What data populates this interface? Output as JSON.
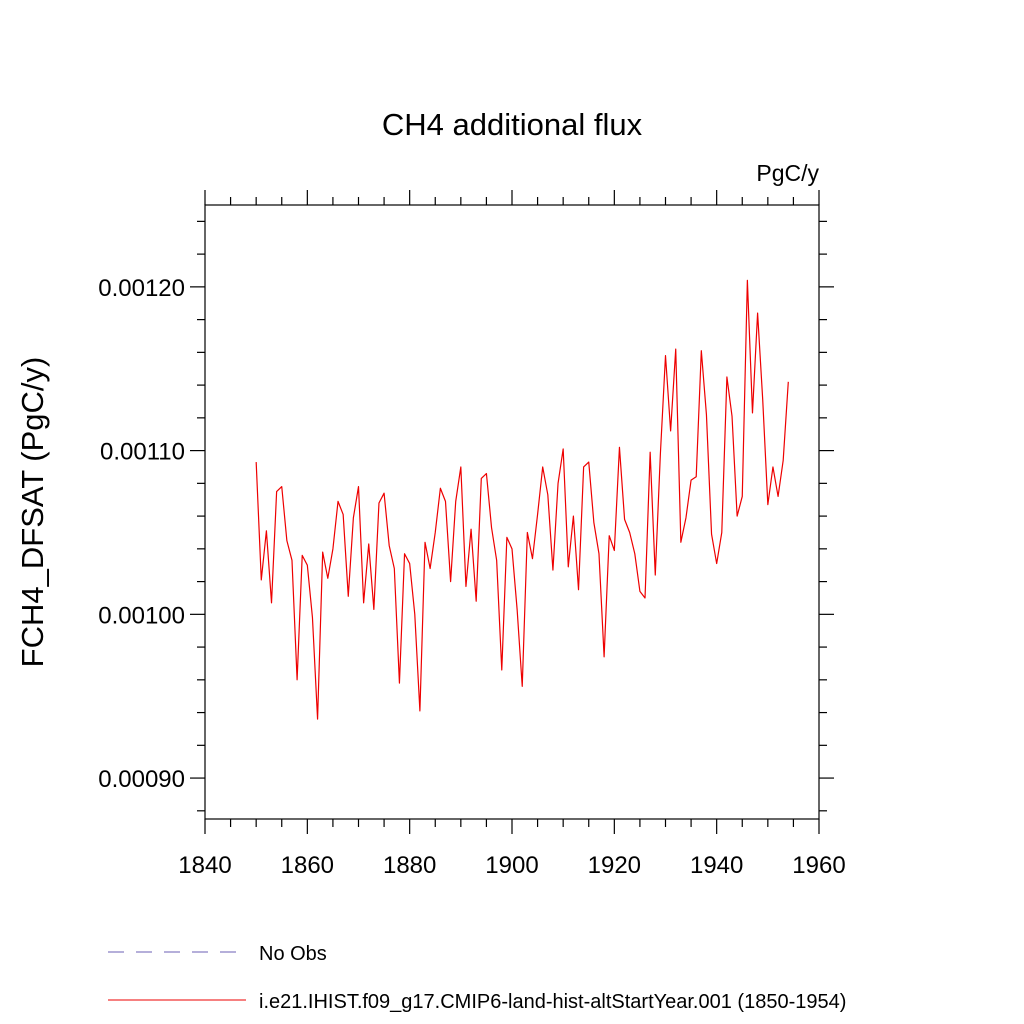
{
  "chart_data": {
    "type": "line",
    "title": "CH4 additional flux",
    "units_label": "PgC/y",
    "ylabel": "FCH4_DFSAT  (PgC/y)",
    "xlabel": "",
    "xlim": [
      1840,
      1960
    ],
    "ylim": [
      0.000875,
      0.00125
    ],
    "x_ticks": [
      1840,
      1860,
      1880,
      1900,
      1920,
      1940,
      1960
    ],
    "x_tick_labels": [
      "1840",
      "1860",
      "1880",
      "1900",
      "1920",
      "1940",
      "1960"
    ],
    "y_ticks": [
      0.0009,
      0.001,
      0.0011,
      0.0012
    ],
    "y_tick_labels": [
      "0.00090",
      "0.00100",
      "0.00110",
      "0.00120"
    ],
    "grid": false,
    "legend_placement": "bottom",
    "legend": [
      {
        "label": "No Obs",
        "color": "#6b5fb5",
        "style": "dashed"
      },
      {
        "label": "i.e21.IHIST.f09_g17.CMIP6-land-hist-altStartYear.001 (1850-1954)",
        "color": "#ee0000",
        "style": "solid"
      }
    ],
    "series": [
      {
        "name": "i.e21.IHIST.f09_g17.CMIP6-land-hist-altStartYear.001 (1850-1954)",
        "color": "#ee0000",
        "x": [
          1850,
          1851,
          1852,
          1853,
          1854,
          1855,
          1856,
          1857,
          1858,
          1859,
          1860,
          1861,
          1862,
          1863,
          1864,
          1865,
          1866,
          1867,
          1868,
          1869,
          1870,
          1871,
          1872,
          1873,
          1874,
          1875,
          1876,
          1877,
          1878,
          1879,
          1880,
          1881,
          1882,
          1883,
          1884,
          1885,
          1886,
          1887,
          1888,
          1889,
          1890,
          1891,
          1892,
          1893,
          1894,
          1895,
          1896,
          1897,
          1898,
          1899,
          1900,
          1901,
          1902,
          1903,
          1904,
          1905,
          1906,
          1907,
          1908,
          1909,
          1910,
          1911,
          1912,
          1913,
          1914,
          1915,
          1916,
          1917,
          1918,
          1919,
          1920,
          1921,
          1922,
          1923,
          1924,
          1925,
          1926,
          1927,
          1928,
          1929,
          1930,
          1931,
          1932,
          1933,
          1934,
          1935,
          1936,
          1937,
          1938,
          1939,
          1940,
          1941,
          1942,
          1943,
          1944,
          1945,
          1946,
          1947,
          1948,
          1949,
          1950,
          1951,
          1952,
          1953,
          1954
        ],
        "values": [
          0.001093,
          0.001021,
          0.001051,
          0.001007,
          0.001075,
          0.001078,
          0.001045,
          0.001033,
          0.00096,
          0.001036,
          0.00103,
          0.000998,
          0.000936,
          0.001038,
          0.001022,
          0.00104,
          0.001069,
          0.001061,
          0.001011,
          0.001059,
          0.001078,
          0.001007,
          0.001043,
          0.001003,
          0.001068,
          0.001074,
          0.001042,
          0.001028,
          0.000958,
          0.001037,
          0.001031,
          0.001,
          0.000941,
          0.001044,
          0.001028,
          0.00105,
          0.001077,
          0.001069,
          0.00102,
          0.001069,
          0.00109,
          0.001017,
          0.001052,
          0.001008,
          0.001083,
          0.001086,
          0.001053,
          0.001033,
          0.000966,
          0.001047,
          0.00104,
          0.001003,
          0.000956,
          0.00105,
          0.001034,
          0.001061,
          0.00109,
          0.001073,
          0.001027,
          0.00108,
          0.001101,
          0.001029,
          0.00106,
          0.001015,
          0.00109,
          0.001093,
          0.001056,
          0.001037,
          0.000974,
          0.001048,
          0.001039,
          0.001102,
          0.001058,
          0.00105,
          0.001037,
          0.001014,
          0.00101,
          0.001099,
          0.001024,
          0.001098,
          0.001158,
          0.001112,
          0.001162,
          0.001044,
          0.001059,
          0.001082,
          0.001084,
          0.001161,
          0.001122,
          0.001049,
          0.001031,
          0.00105,
          0.001145,
          0.001121,
          0.00106,
          0.001072,
          0.001204,
          0.001123,
          0.001184,
          0.001131,
          0.001067,
          0.00109,
          0.001072,
          0.001094,
          0.001142
        ]
      }
    ]
  }
}
